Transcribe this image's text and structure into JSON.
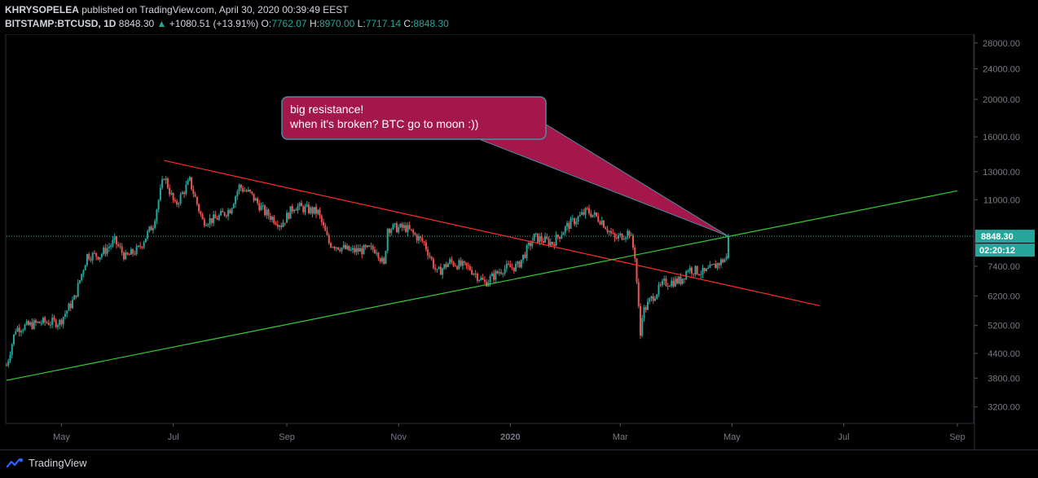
{
  "header": {
    "author": "KHRYSOPELEA",
    "published_text": "published on TradingView.com, April 30, 2020 00:39:49 EEST",
    "symbol": "BITSTAMP:BTCUSD, 1D",
    "last": "8848.30",
    "change": "+1080.51 (+13.91%)",
    "o_label": "O:",
    "o_val": "7762.07",
    "h_label": "H:",
    "h_val": "8970.00",
    "l_label": "L:",
    "l_val": "7717.14",
    "c_label": "C:",
    "c_val": "8848.30"
  },
  "footer": {
    "brand": "TradingView"
  },
  "colors": {
    "up": "#26a69a",
    "down": "#ef5350",
    "resistance": "#ff2a2a",
    "support": "#33cc33",
    "callout": "#a3174a"
  },
  "chart_data": {
    "type": "candlestick",
    "title": "",
    "y_scale": "log",
    "ylim": [
      2900,
      29500
    ],
    "y_ticks": [
      "28000.00",
      "24000.00",
      "20000.00",
      "16000.00",
      "13000.00",
      "11000.00",
      "7400.00",
      "6200.00",
      "5200.00",
      "4400.00",
      "3800.00",
      "3200.00"
    ],
    "x_ticks": [
      "May",
      "Jul",
      "Sep",
      "Nov",
      "2020",
      "Mar",
      "May",
      "Jul",
      "Sep"
    ],
    "x_tick_dates": [
      "2019-05-01",
      "2019-07-01",
      "2019-09-01",
      "2019-11-01",
      "2020-01-01",
      "2020-03-01",
      "2020-05-01",
      "2020-07-01",
      "2020-09-01"
    ],
    "last_price_label": "8848.30",
    "countdown_label": "02:20:12",
    "close_path": [
      [
        "2019-04-01",
        4100
      ],
      [
        "2019-04-06",
        5100
      ],
      [
        "2019-04-20",
        5300
      ],
      [
        "2019-04-30",
        5300
      ],
      [
        "2019-05-08",
        6100
      ],
      [
        "2019-05-15",
        7900
      ],
      [
        "2019-05-22",
        7900
      ],
      [
        "2019-05-30",
        8600
      ],
      [
        "2019-06-05",
        7800
      ],
      [
        "2019-06-12",
        8200
      ],
      [
        "2019-06-20",
        9500
      ],
      [
        "2019-06-26",
        12700
      ],
      [
        "2019-07-02",
        10600
      ],
      [
        "2019-07-10",
        12300
      ],
      [
        "2019-07-17",
        9700
      ],
      [
        "2019-07-24",
        9800
      ],
      [
        "2019-08-01",
        10400
      ],
      [
        "2019-08-06",
        11900
      ],
      [
        "2019-08-12",
        11400
      ],
      [
        "2019-08-20",
        10200
      ],
      [
        "2019-08-29",
        9500
      ],
      [
        "2019-09-05",
        10600
      ],
      [
        "2019-09-18",
        10200
      ],
      [
        "2019-09-24",
        8500
      ],
      [
        "2019-10-06",
        8100
      ],
      [
        "2019-10-20",
        8200
      ],
      [
        "2019-10-24",
        7400
      ],
      [
        "2019-10-26",
        9300
      ],
      [
        "2019-11-05",
        9300
      ],
      [
        "2019-11-15",
        8500
      ],
      [
        "2019-11-22",
        7100
      ],
      [
        "2019-11-29",
        7600
      ],
      [
        "2019-12-10",
        7300
      ],
      [
        "2019-12-18",
        6700
      ],
      [
        "2019-12-28",
        7300
      ],
      [
        "2020-01-05",
        7400
      ],
      [
        "2020-01-14",
        8800
      ],
      [
        "2020-01-24",
        8500
      ],
      [
        "2020-02-01",
        9400
      ],
      [
        "2020-02-12",
        10300
      ],
      [
        "2020-02-20",
        9700
      ],
      [
        "2020-02-27",
        8700
      ],
      [
        "2020-03-06",
        9100
      ],
      [
        "2020-03-09",
        7900
      ],
      [
        "2020-03-12",
        4900
      ],
      [
        "2020-03-13",
        5600
      ],
      [
        "2020-03-19",
        6200
      ],
      [
        "2020-03-25",
        6700
      ],
      [
        "2020-04-03",
        6800
      ],
      [
        "2020-04-07",
        7300
      ],
      [
        "2020-04-16",
        7100
      ],
      [
        "2020-04-23",
        7500
      ],
      [
        "2020-04-28",
        7780
      ],
      [
        "2020-04-29",
        8848.3
      ]
    ],
    "lines": [
      {
        "name": "resistance",
        "from": [
          "2019-06-26",
          13900
        ],
        "to": [
          "2020-06-18",
          5850
        ]
      },
      {
        "name": "support",
        "from": [
          "2019-04-01",
          3750
        ],
        "to": [
          "2020-09-01",
          11600
        ]
      }
    ],
    "callout": {
      "line1": "big resistance!",
      "line2": "when it's broken? BTC go to moon :))",
      "anchor": [
        "2020-04-29",
        8848.3
      ]
    }
  }
}
